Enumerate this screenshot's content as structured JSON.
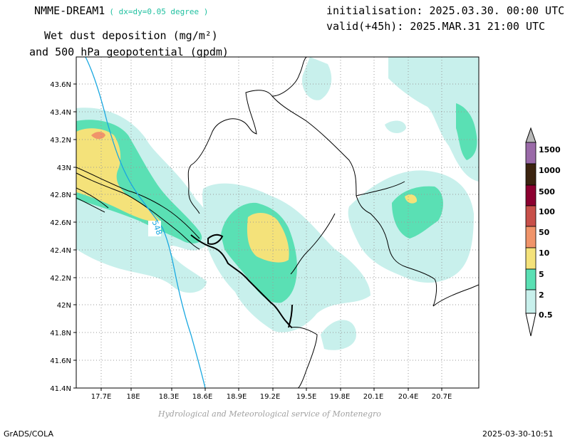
{
  "header": {
    "model": "NMME-DREAM1",
    "resolution": "( dx=dy=0.05 degree )",
    "init": "initialisation: 2025.03.30. 00:00 UTC",
    "valid": "valid(+45h): 2025.MAR.31 21:00 UTC",
    "title_line1": "Wet dust deposition (mg/m²)",
    "title_line2": "and 500 hPa geopotential (gpdm)"
  },
  "map": {
    "lat_labels": [
      "43.6N",
      "43.4N",
      "43.2N",
      "43N",
      "42.8N",
      "42.6N",
      "42.4N",
      "42.2N",
      "42N",
      "41.8N",
      "41.6N",
      "41.4N"
    ],
    "lon_labels": [
      "17.7E",
      "18E",
      "18.3E",
      "18.6E",
      "18.9E",
      "19.2E",
      "19.5E",
      "19.8E",
      "20.1E",
      "20.4E",
      "20.7E"
    ],
    "contour_label": "548"
  },
  "colorbar": {
    "levels": [
      "0.5",
      "2",
      "5",
      "10",
      "50",
      "100",
      "500",
      "1000",
      "1500"
    ],
    "colors": [
      "#c8f0ec",
      "#5ae0b4",
      "#f4e27a",
      "#f0946a",
      "#c8504a",
      "#8c0030",
      "#3c2410",
      "#9a6aa8",
      "#b8b8b8"
    ]
  },
  "footer": {
    "credit": "Hydrological and Meteorological service of Montenegro",
    "software": "GrADS/COLA",
    "timestamp": "2025-03-30-10:51"
  }
}
